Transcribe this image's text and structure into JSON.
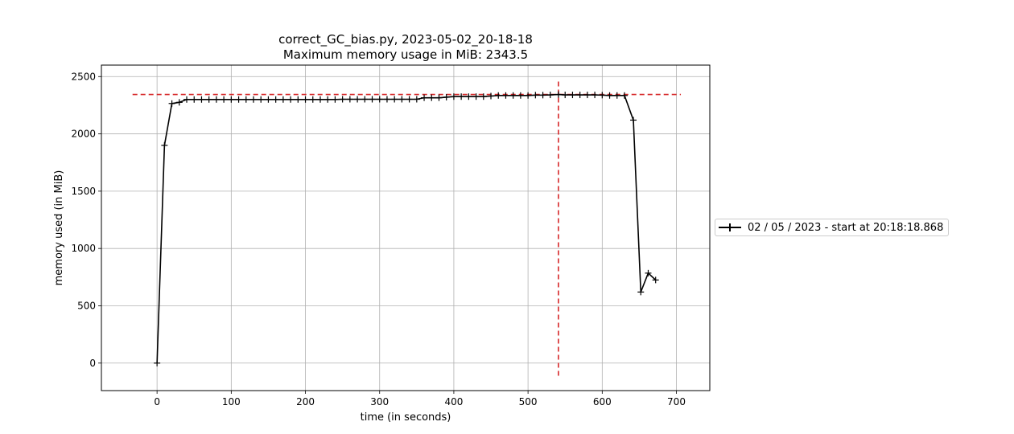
{
  "chart_data": {
    "type": "line",
    "title": "correct_GC_bias.py, 2023-05-02_20-18-18",
    "subtitle": "Maximum memory usage in MiB: 2343.5",
    "xlabel": "time (in seconds)",
    "ylabel": "memory used (in MiB)",
    "xlim": [
      -75,
      745
    ],
    "ylim": [
      -240,
      2600
    ],
    "xticks": [
      0,
      100,
      200,
      300,
      400,
      500,
      600,
      700
    ],
    "yticks": [
      0,
      500,
      1000,
      1500,
      2000,
      2500
    ],
    "grid": true,
    "legend_position": "right, outside plot",
    "max_line": {
      "y": 2343.5,
      "x_start": -33,
      "x_end": 706,
      "color": "#d62728"
    },
    "peak_time_line": {
      "x": 541,
      "y_start": -110,
      "y_end": 2460,
      "color": "#d62728"
    },
    "series": [
      {
        "name": "02 / 05 / 2023 - start at 20:18:18.868",
        "color": "#000000",
        "marker": "+",
        "x": [
          0,
          10,
          20,
          30,
          40,
          50,
          60,
          70,
          80,
          90,
          100,
          110,
          120,
          130,
          140,
          150,
          160,
          170,
          180,
          190,
          200,
          210,
          220,
          230,
          240,
          250,
          260,
          270,
          280,
          290,
          300,
          310,
          320,
          330,
          340,
          350,
          360,
          370,
          380,
          390,
          400,
          410,
          420,
          430,
          440,
          450,
          460,
          470,
          480,
          490,
          500,
          510,
          520,
          530,
          541,
          550,
          560,
          570,
          580,
          590,
          600,
          610,
          620,
          630,
          642,
          652,
          662,
          672
        ],
        "y": [
          0,
          1900,
          2265,
          2275,
          2300,
          2300,
          2300,
          2300,
          2300,
          2300,
          2300,
          2300,
          2300,
          2300,
          2300,
          2300,
          2300,
          2300,
          2300,
          2300,
          2300,
          2300,
          2300,
          2300,
          2300,
          2302,
          2302,
          2302,
          2302,
          2302,
          2302,
          2302,
          2302,
          2302,
          2302,
          2302,
          2315,
          2315,
          2315,
          2320,
          2325,
          2325,
          2325,
          2325,
          2325,
          2330,
          2335,
          2335,
          2335,
          2335,
          2335,
          2338,
          2338,
          2340,
          2343.5,
          2340,
          2340,
          2340,
          2340,
          2340,
          2338,
          2335,
          2335,
          2335,
          2120,
          620,
          785,
          725
        ]
      }
    ]
  }
}
